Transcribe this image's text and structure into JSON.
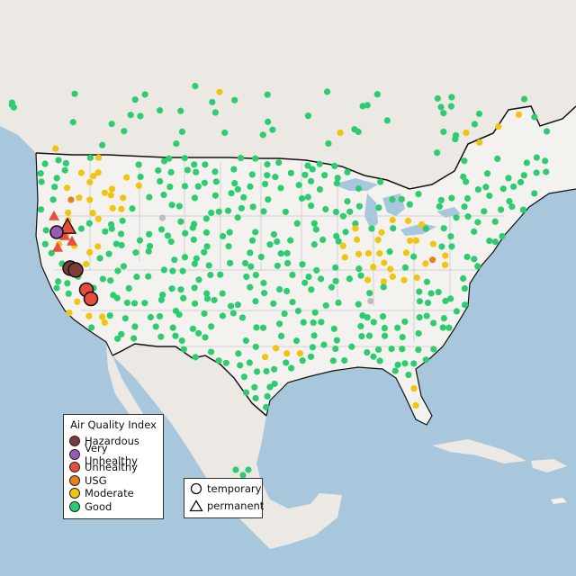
{
  "map": {
    "legend": {
      "title": "Air Quality Index",
      "items": [
        {
          "label": "Hazardous",
          "color": "#7e3a36"
        },
        {
          "label": "Very Unhealthy",
          "color": "#9b59b6"
        },
        {
          "label": "Unhealthy",
          "color": "#e74c3c"
        },
        {
          "label": "USG",
          "color": "#e67e22"
        },
        {
          "label": "Moderate",
          "color": "#f1c40f"
        },
        {
          "label": "Good",
          "color": "#2ecc71"
        }
      ]
    },
    "monitor_types": {
      "items": [
        {
          "label": "temporary",
          "symbol": "circle"
        },
        {
          "label": "permanent",
          "symbol": "triangle"
        }
      ]
    },
    "colors": {
      "ocean": "#a9c7dc",
      "land": "#ece9e4",
      "us_land": "#f4f2ef",
      "border": "#111111",
      "state_lines": "#c8c8c8",
      "inactive_monitor": "#bdbdbd"
    }
  }
}
